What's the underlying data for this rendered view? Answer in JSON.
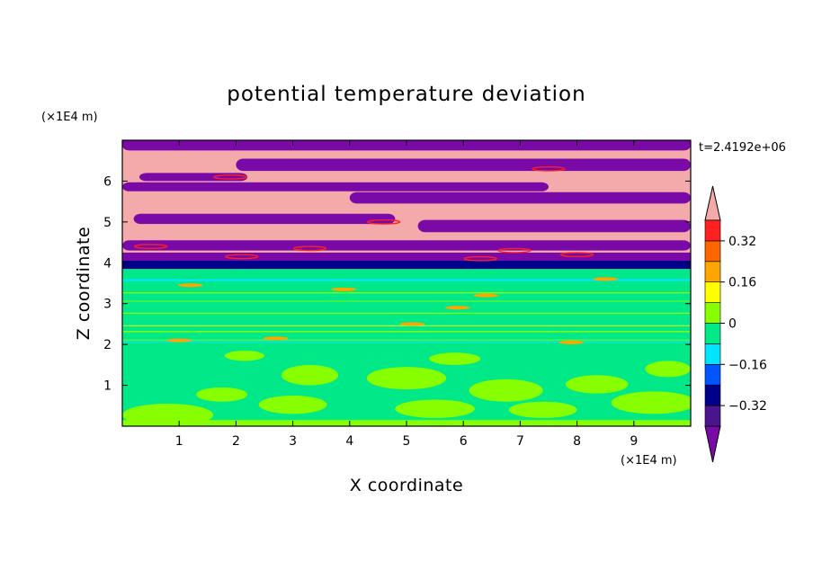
{
  "chart_data": {
    "type": "heatmap",
    "title": "potential temperature deviation",
    "xlabel": "X coordinate",
    "ylabel": "Z coordinate",
    "x_unit": "(×1E4 m)",
    "y_unit": "(×1E4 m)",
    "time_label": "t=2.4192e+06",
    "xlim": [
      0,
      10
    ],
    "ylim": [
      0,
      7
    ],
    "x_ticks": [
      1,
      2,
      3,
      4,
      5,
      6,
      7,
      8,
      9
    ],
    "y_ticks": [
      1,
      2,
      3,
      4,
      5,
      6
    ],
    "colorbar": {
      "levels": [
        -0.4,
        -0.32,
        -0.24,
        -0.16,
        -0.08,
        0,
        0.08,
        0.16,
        0.24,
        0.32,
        0.4
      ],
      "tick_labels": [
        "0.32",
        "0.16",
        "0",
        "−0.16",
        "−0.32"
      ],
      "tick_values": [
        0.32,
        0.16,
        0,
        -0.16,
        -0.32
      ],
      "colors": [
        "#7a0aa8",
        "#4a148c",
        "#00008b",
        "#0055ff",
        "#00e5ff",
        "#00e888",
        "#88ff00",
        "#ffff00",
        "#ffa500",
        "#ff6600",
        "#ff2020",
        "#f4aaaa"
      ],
      "extend": "both"
    },
    "regions": [
      {
        "z_range": [
          0,
          2.0
        ],
        "value": "0 to 0.08 mixed with -0.08 to 0",
        "pattern": "turbulent swirls"
      },
      {
        "z_range": [
          2.0,
          3.9
        ],
        "value": "-0.08 to 0",
        "pattern": "layered with thin positive filaments"
      },
      {
        "z_range": [
          3.8,
          4.1
        ],
        "value": "-0.4 to -0.32",
        "pattern": "strong negative band"
      },
      {
        "z_range": [
          4.0,
          7.0
        ],
        "value": "alternating > 0.4 and < -0.4",
        "pattern": "horizontal stripes"
      }
    ]
  }
}
